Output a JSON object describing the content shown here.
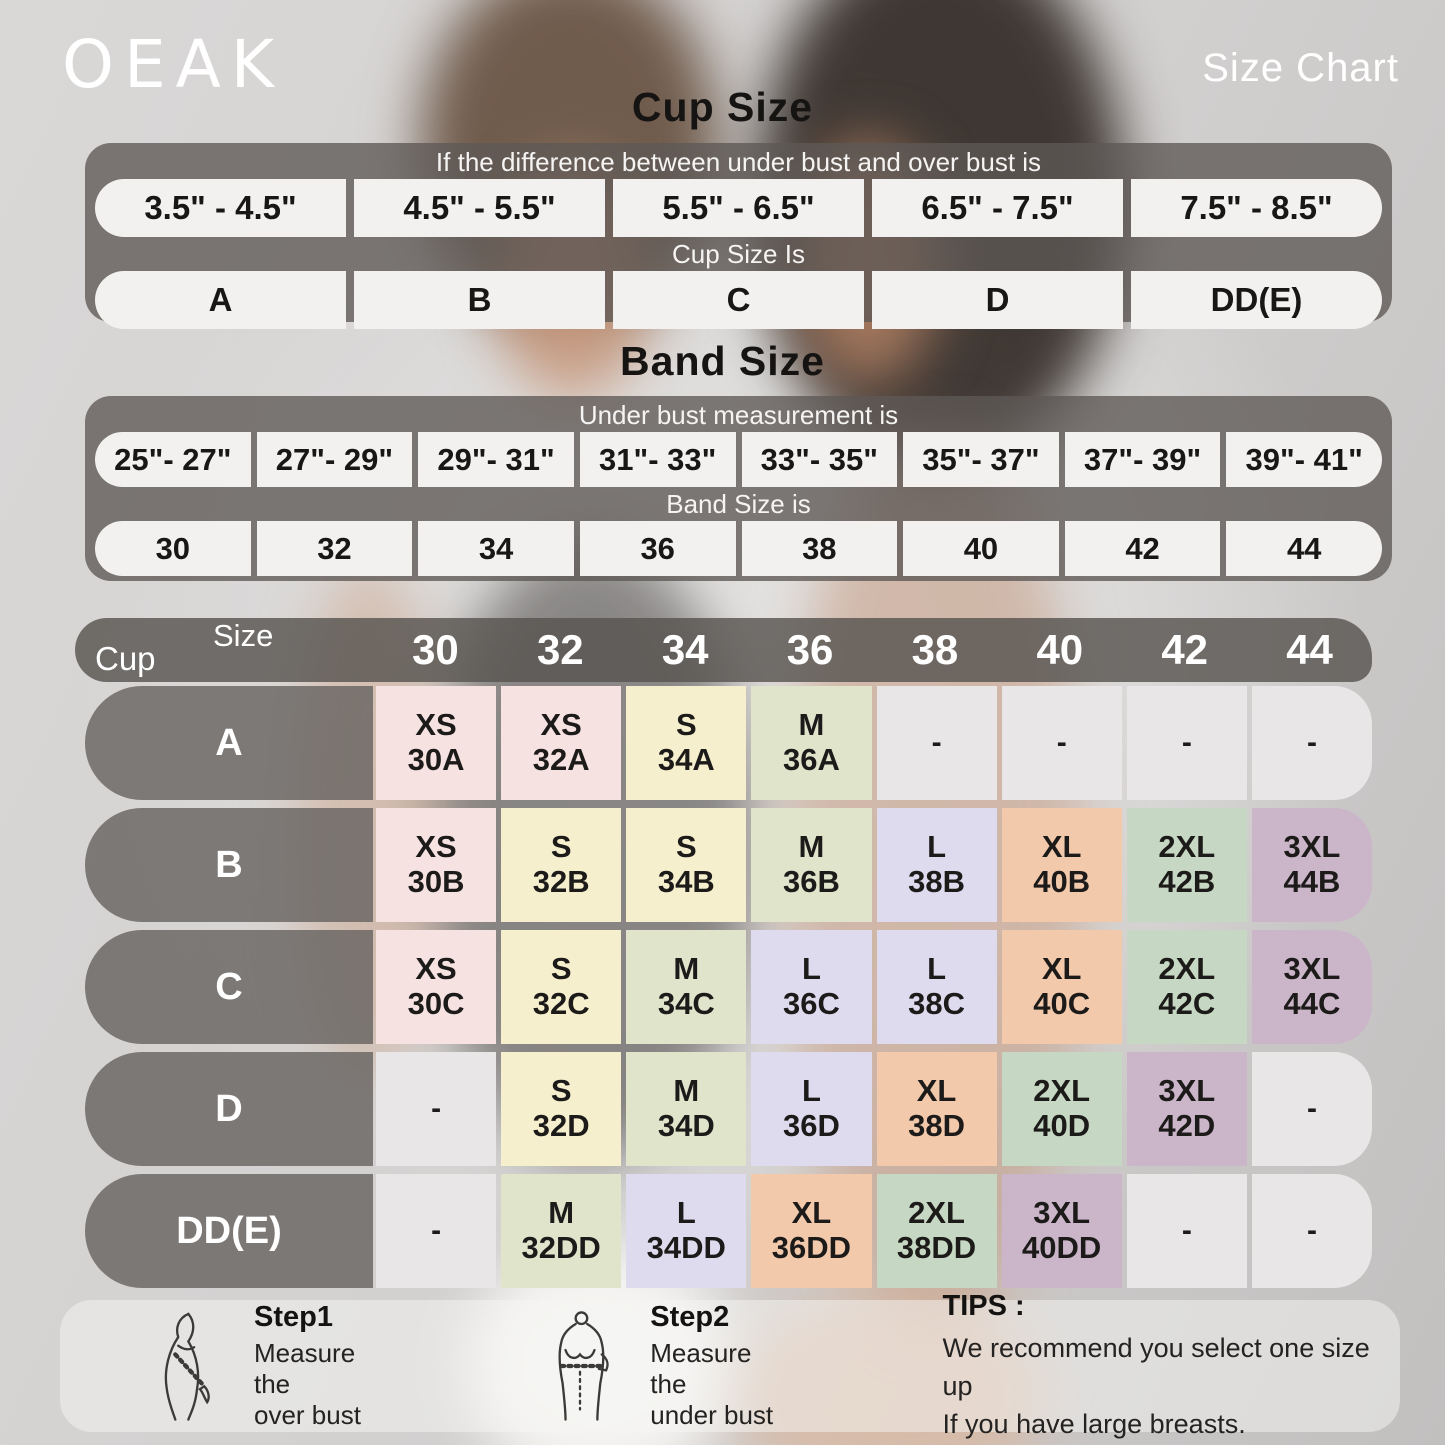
{
  "brand": "OEAK",
  "page_title": "Size Chart",
  "cup_section": {
    "title": "Cup Size",
    "instruction": "If the difference between under bust and over bust is",
    "ranges": [
      "3.5\" -  4.5\"",
      "4.5\" -  5.5\"",
      "5.5\" -  6.5\"",
      "6.5\" -  7.5\"",
      "7.5\" -  8.5\""
    ],
    "result_label": "Cup Size Is",
    "cups": [
      "A",
      "B",
      "C",
      "D",
      "DD(E)"
    ]
  },
  "band_section": {
    "title": "Band Size",
    "instruction": "Under bust measurement is",
    "ranges": [
      "25\"- 27\"",
      "27\"- 29\"",
      "29\"- 31\"",
      "31\"- 33\"",
      "33\"- 35\"",
      "35\"- 37\"",
      "37\"- 39\"",
      "39\"- 41\""
    ],
    "result_label": "Band Size is",
    "bands": [
      "30",
      "32",
      "34",
      "36",
      "38",
      "40",
      "42",
      "44"
    ]
  },
  "matrix": {
    "corner": {
      "top": "Size",
      "bottom": "Cup"
    },
    "columns": [
      "30",
      "32",
      "34",
      "36",
      "38",
      "40",
      "42",
      "44"
    ],
    "palette": {
      "pink": "#f6e3e1",
      "cream": "#f6efcd",
      "sage": "#dfe4cb",
      "lavender": "#dfdbee",
      "peach": "#f3c9ab",
      "green": "#c6d8c3",
      "mauve": "#cab5c9",
      "gray": "#e8e6e7"
    },
    "rows": [
      {
        "cup": "A",
        "cells": [
          {
            "size": "XS",
            "code": "30A",
            "color": "pink"
          },
          {
            "size": "XS",
            "code": "32A",
            "color": "pink"
          },
          {
            "size": "S",
            "code": "34A",
            "color": "cream"
          },
          {
            "size": "M",
            "code": "36A",
            "color": "sage"
          },
          {
            "size": "-",
            "code": "",
            "color": "gray"
          },
          {
            "size": "-",
            "code": "",
            "color": "gray"
          },
          {
            "size": "-",
            "code": "",
            "color": "gray"
          },
          {
            "size": "-",
            "code": "",
            "color": "gray"
          }
        ]
      },
      {
        "cup": "B",
        "cells": [
          {
            "size": "XS",
            "code": "30B",
            "color": "pink"
          },
          {
            "size": "S",
            "code": "32B",
            "color": "cream"
          },
          {
            "size": "S",
            "code": "34B",
            "color": "cream"
          },
          {
            "size": "M",
            "code": "36B",
            "color": "sage"
          },
          {
            "size": "L",
            "code": "38B",
            "color": "lavender"
          },
          {
            "size": "XL",
            "code": "40B",
            "color": "peach"
          },
          {
            "size": "2XL",
            "code": "42B",
            "color": "green"
          },
          {
            "size": "3XL",
            "code": "44B",
            "color": "mauve"
          }
        ]
      },
      {
        "cup": "C",
        "cells": [
          {
            "size": "XS",
            "code": "30C",
            "color": "pink"
          },
          {
            "size": "S",
            "code": "32C",
            "color": "cream"
          },
          {
            "size": "M",
            "code": "34C",
            "color": "sage"
          },
          {
            "size": "L",
            "code": "36C",
            "color": "lavender"
          },
          {
            "size": "L",
            "code": "38C",
            "color": "lavender"
          },
          {
            "size": "XL",
            "code": "40C",
            "color": "peach"
          },
          {
            "size": "2XL",
            "code": "42C",
            "color": "green"
          },
          {
            "size": "3XL",
            "code": "44C",
            "color": "mauve"
          }
        ]
      },
      {
        "cup": "D",
        "cells": [
          {
            "size": "-",
            "code": "",
            "color": "gray"
          },
          {
            "size": "S",
            "code": "32D",
            "color": "cream"
          },
          {
            "size": "M",
            "code": "34D",
            "color": "sage"
          },
          {
            "size": "L",
            "code": "36D",
            "color": "lavender"
          },
          {
            "size": "XL",
            "code": "38D",
            "color": "peach"
          },
          {
            "size": "2XL",
            "code": "40D",
            "color": "green"
          },
          {
            "size": "3XL",
            "code": "42D",
            "color": "mauve"
          },
          {
            "size": "-",
            "code": "",
            "color": "gray"
          }
        ]
      },
      {
        "cup": "DD(E)",
        "cells": [
          {
            "size": "-",
            "code": "",
            "color": "gray"
          },
          {
            "size": "M",
            "code": "32DD",
            "color": "sage"
          },
          {
            "size": "L",
            "code": "34DD",
            "color": "lavender"
          },
          {
            "size": "XL",
            "code": "36DD",
            "color": "peach"
          },
          {
            "size": "2XL",
            "code": "38DD",
            "color": "green"
          },
          {
            "size": "3XL",
            "code": "40DD",
            "color": "mauve"
          },
          {
            "size": "-",
            "code": "",
            "color": "gray"
          },
          {
            "size": "-",
            "code": "",
            "color": "gray"
          }
        ]
      }
    ]
  },
  "footer": {
    "steps": [
      {
        "label": "Step1",
        "line1": "Measure the",
        "line2": "over bust",
        "icon": "overbust-measure-icon"
      },
      {
        "label": "Step2",
        "line1": "Measure the",
        "line2": "under bust",
        "icon": "underbust-measure-icon"
      }
    ],
    "tips_label": "TIPS :",
    "tips_line1": "We recommend you select one size up",
    "tips_line2": "If you have large breasts."
  }
}
